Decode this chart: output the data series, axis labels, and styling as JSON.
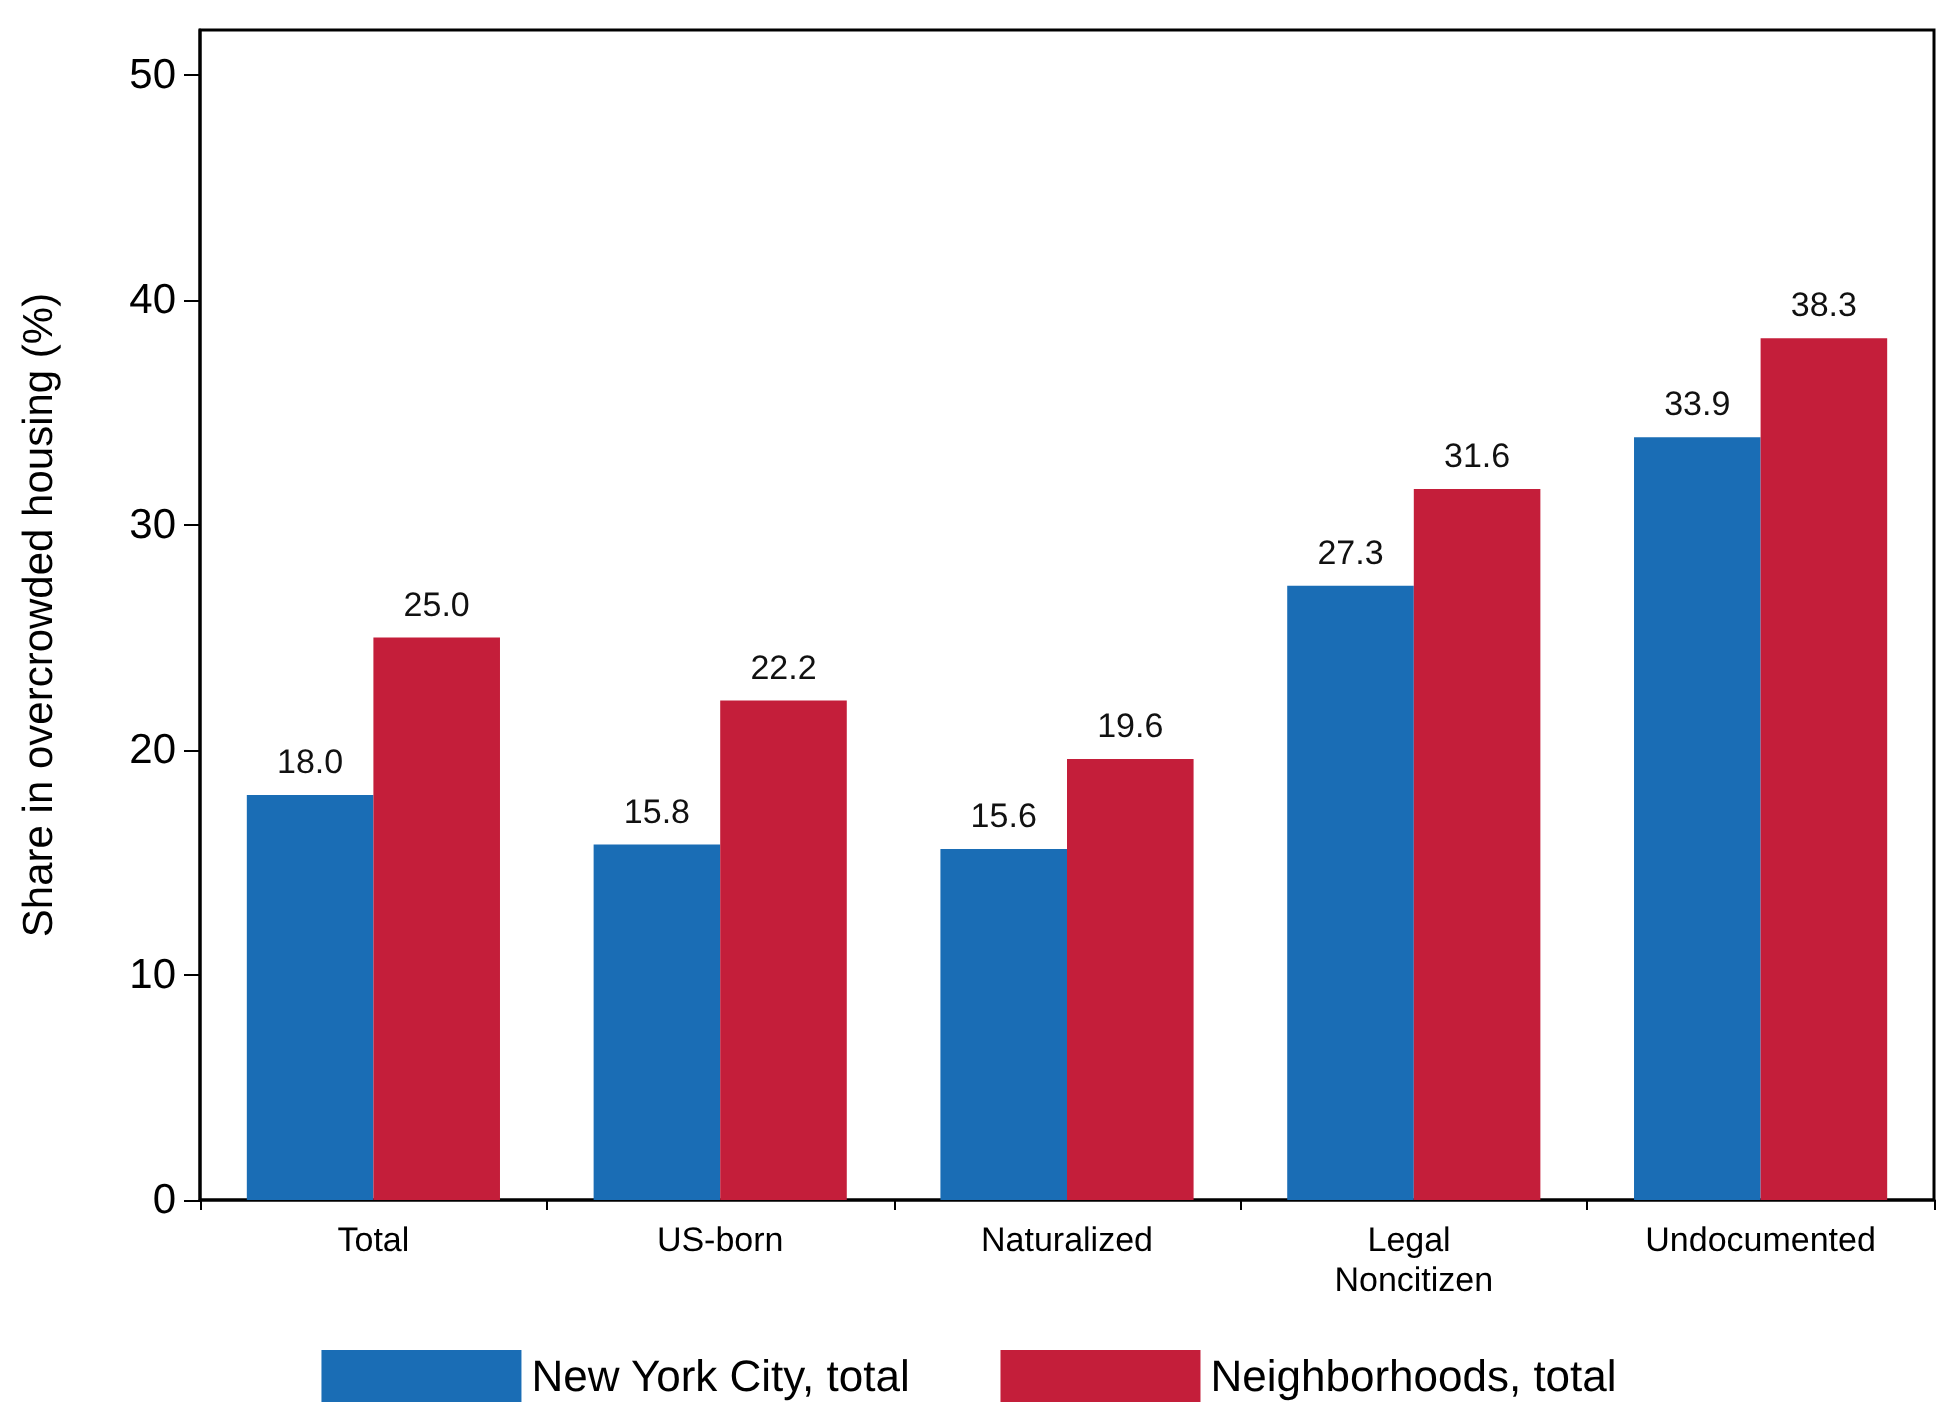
{
  "chart_data": {
    "type": "bar",
    "ylabel": "Share in overcrowded housing (%)",
    "categories": [
      "Total",
      "US-born",
      "Naturalized",
      "Legal Noncitizen",
      "Undocumented"
    ],
    "series": [
      {
        "name": "New York City, total",
        "color": "#1a6db5",
        "values": [
          18.0,
          15.8,
          15.6,
          27.3,
          33.9
        ],
        "value_labels": [
          "18.0",
          "15.8",
          "15.6",
          "27.3",
          "33.9"
        ]
      },
      {
        "name": "Neighborhoods, total",
        "color": "#c41e3a",
        "values": [
          25.0,
          22.2,
          19.6,
          31.6,
          38.3
        ],
        "value_labels": [
          "25.0",
          "22.2",
          "19.6",
          "31.6",
          "38.3"
        ]
      }
    ],
    "ylim": [
      0,
      52
    ],
    "yticks": [
      0,
      10,
      20,
      30,
      40,
      50
    ],
    "grid": false,
    "legend": "bottom"
  }
}
